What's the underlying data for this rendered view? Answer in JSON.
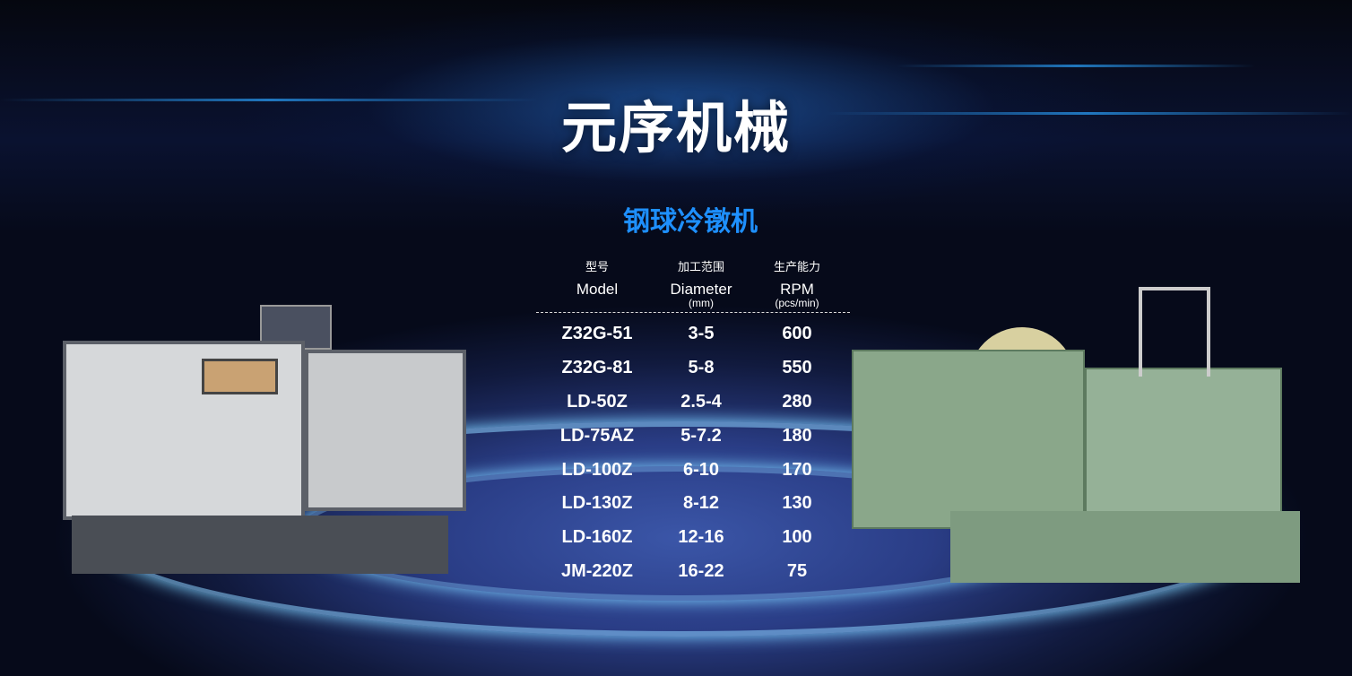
{
  "title": "元序机械",
  "subtitle": "钢球冷镦机",
  "table": {
    "headers": [
      {
        "zh": "型号",
        "en": "Model",
        "unit": ""
      },
      {
        "zh": "加工范围",
        "en": "Diameter",
        "unit": "(mm)"
      },
      {
        "zh": "生产能力",
        "en": "RPM",
        "unit": "(pcs/min)"
      }
    ],
    "rows": [
      [
        "Z32G-51",
        "3-5",
        "600"
      ],
      [
        "Z32G-81",
        "5-8",
        "550"
      ],
      [
        "LD-50Z",
        "2.5-4",
        "280"
      ],
      [
        "LD-75AZ",
        "5-7.2",
        "180"
      ],
      [
        "LD-100Z",
        "6-10",
        "170"
      ],
      [
        "LD-130Z",
        "8-12",
        "130"
      ],
      [
        "LD-160Z",
        "12-16",
        "100"
      ],
      [
        "JM-220Z",
        "16-22",
        "75"
      ]
    ]
  },
  "colors": {
    "accent": "#1e90ff",
    "background": "#0a1230"
  }
}
